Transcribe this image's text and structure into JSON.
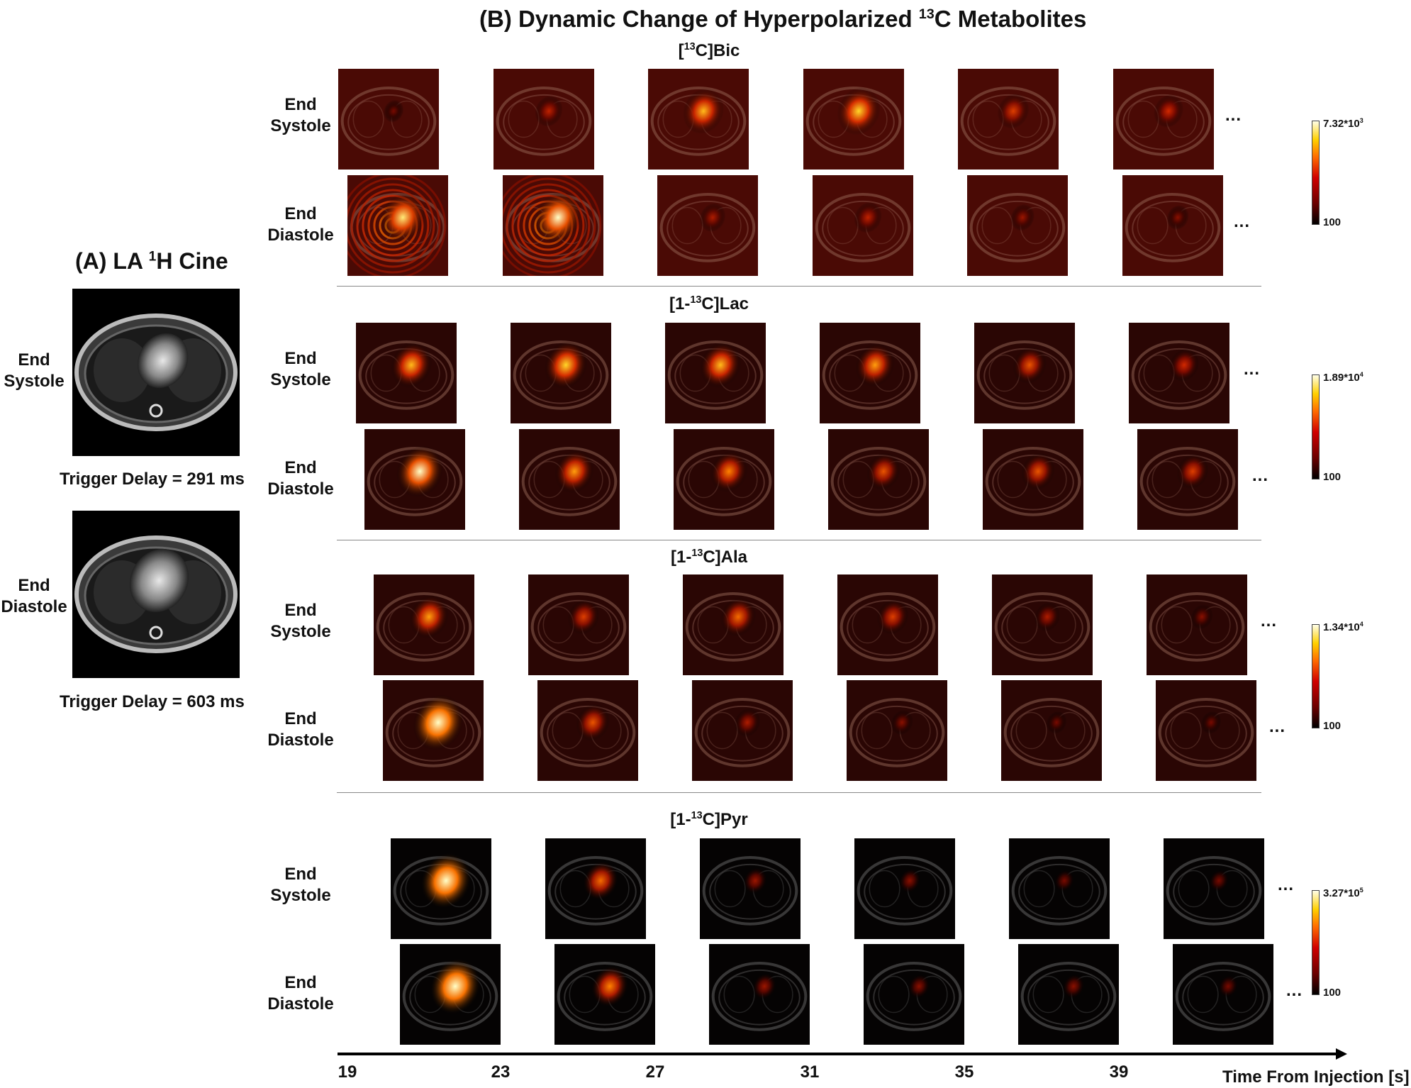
{
  "panel_b_title": {
    "pre": "(B) Dynamic Change of Hyperpolarized ",
    "sup": "13",
    "post": "C Metabolites"
  },
  "panel_a_title": {
    "pre": "(A) LA ",
    "sup": "1",
    "post": "H Cine"
  },
  "panel_a": {
    "rows": [
      {
        "label_line1": "End",
        "label_line2": "Systole",
        "trigger_delay": "Trigger Delay = 291 ms"
      },
      {
        "label_line1": "End",
        "label_line2": "Diastole",
        "trigger_delay": "Trigger Delay = 603 ms"
      }
    ]
  },
  "row_labels": {
    "systole": {
      "line1": "End",
      "line2": "Systole"
    },
    "diastole": {
      "line1": "End",
      "line2": "Diastole"
    }
  },
  "ellipsis": "...",
  "metabolites": [
    {
      "name": {
        "pre": "[",
        "sup": "13",
        "post": "C]Bic"
      },
      "colorbar": {
        "max": {
          "base": "7.32*10",
          "exp": "3"
        },
        "min": "100"
      },
      "systole_intensity": [
        0.15,
        0.35,
        0.7,
        0.75,
        0.45,
        0.4
      ],
      "diastole_intensity": [
        0.8,
        0.85,
        0.3,
        0.35,
        0.25,
        0.2
      ]
    },
    {
      "name": {
        "pre": "[1-",
        "sup": "13",
        "post": "C]Lac"
      },
      "colorbar": {
        "max": {
          "base": "1.89*10",
          "exp": "4"
        },
        "min": "100"
      },
      "systole_intensity": [
        0.7,
        0.75,
        0.7,
        0.65,
        0.5,
        0.4
      ],
      "diastole_intensity": [
        0.85,
        0.65,
        0.6,
        0.5,
        0.5,
        0.45
      ]
    },
    {
      "name": {
        "pre": "[1-",
        "sup": "13",
        "post": "C]Ala"
      },
      "colorbar": {
        "max": {
          "base": "1.34*10",
          "exp": "4"
        },
        "min": "100"
      },
      "systole_intensity": [
        0.65,
        0.45,
        0.55,
        0.45,
        0.3,
        0.2
      ],
      "diastole_intensity": [
        0.95,
        0.5,
        0.3,
        0.2,
        0.15,
        0.15
      ]
    },
    {
      "name": {
        "pre": "[1-",
        "sup": "13",
        "post": "C]Pyr"
      },
      "colorbar": {
        "max": {
          "base": "3.27*10",
          "exp": "5"
        },
        "min": "100"
      },
      "systole_intensity": [
        0.95,
        0.55,
        0.25,
        0.2,
        0.15,
        0.15
      ],
      "diastole_intensity": [
        0.95,
        0.6,
        0.25,
        0.2,
        0.2,
        0.15
      ]
    }
  ],
  "time_axis": {
    "ticks": [
      "19",
      "23",
      "27",
      "31",
      "35",
      "39"
    ],
    "label": "Time From Injection [s]"
  }
}
